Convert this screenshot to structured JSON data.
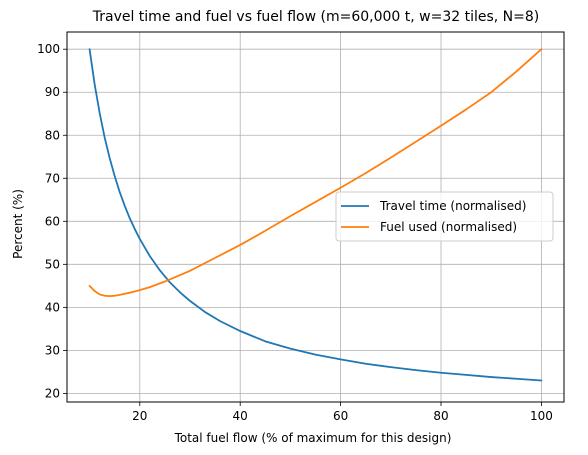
{
  "chart_data": {
    "type": "line",
    "title": "Travel time and fuel vs fuel flow (m=60,000 t, w=32 tiles, N=8)",
    "xlabel": "Total fuel flow (% of maximum for this design)",
    "ylabel": "Percent (%)",
    "xlim": [
      5.5,
      104.5
    ],
    "ylim": [
      18,
      104
    ],
    "xticks": [
      20,
      40,
      60,
      80,
      100
    ],
    "yticks": [
      20,
      30,
      40,
      50,
      60,
      70,
      80,
      90,
      100
    ],
    "grid": true,
    "legend_position": "center-right",
    "series": [
      {
        "name": "Travel time (normalised)",
        "color": "#1f77b4",
        "x": [
          10,
          11,
          12,
          13,
          14,
          15,
          16,
          17,
          18,
          19,
          20,
          22,
          24,
          26,
          28,
          30,
          33,
          36,
          40,
          45,
          50,
          55,
          60,
          65,
          70,
          75,
          80,
          85,
          90,
          95,
          100
        ],
        "y": [
          100,
          91.9,
          85.2,
          79.5,
          74.7,
          70.5,
          66.8,
          63.6,
          60.7,
          58.2,
          55.9,
          51.9,
          48.6,
          45.8,
          43.5,
          41.5,
          38.9,
          36.8,
          34.5,
          32.1,
          30.4,
          29.0,
          27.9,
          26.9,
          26.1,
          25.4,
          24.8,
          24.3,
          23.8,
          23.4,
          23.0
        ]
      },
      {
        "name": "Fuel used (normalised)",
        "color": "#ff7f0e",
        "x": [
          10,
          11,
          12,
          13,
          14,
          15,
          16,
          18,
          20,
          22,
          25,
          30,
          35,
          40,
          45,
          50,
          55,
          60,
          65,
          70,
          75,
          80,
          85,
          90,
          95,
          100
        ],
        "y": [
          45,
          43.8,
          43.0,
          42.7,
          42.6,
          42.7,
          42.9,
          43.4,
          44.0,
          44.7,
          46.0,
          48.5,
          51.5,
          54.5,
          57.8,
          61.2,
          64.5,
          67.8,
          71.2,
          74.8,
          78.5,
          82.2,
          86.0,
          90.0,
          94.8,
          100
        ]
      }
    ]
  }
}
